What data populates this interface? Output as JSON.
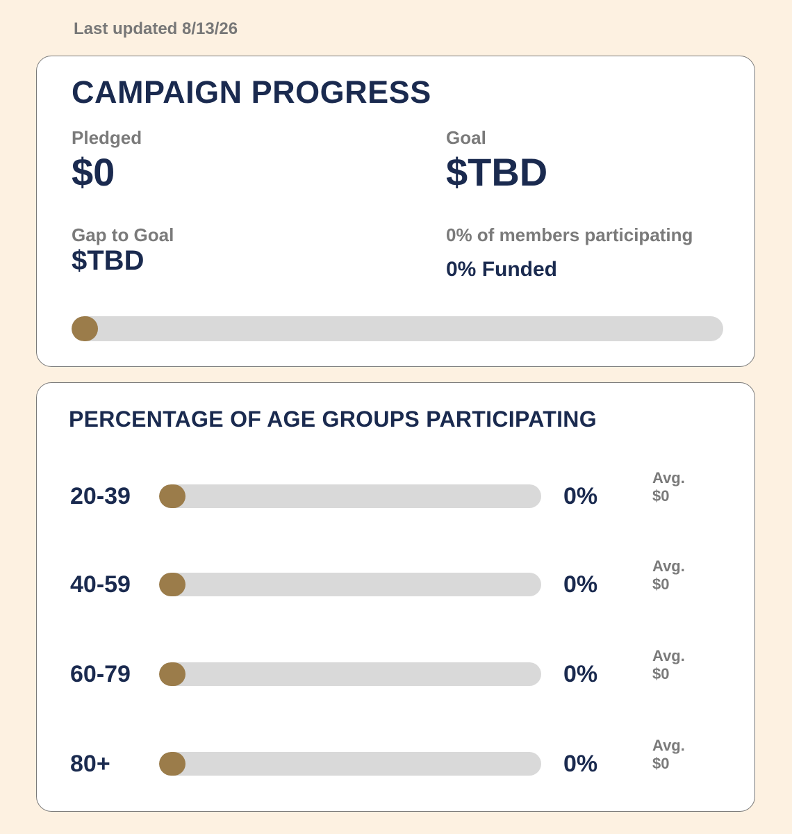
{
  "last_updated": "Last updated 8/13/26",
  "progress": {
    "title": "CAMPAIGN PROGRESS",
    "pledged_label": "Pledged",
    "pledged_value": "$0",
    "goal_label": "Goal",
    "goal_value": "$TBD",
    "gap_label": "Gap to Goal",
    "gap_value": "$TBD",
    "participation": "0% of members participating",
    "funded": "0% Funded",
    "funded_fraction": 0
  },
  "age_groups": {
    "title": "PERCENTAGE OF AGE GROUPS PARTICIPATING",
    "avg_label": "Avg.",
    "rows": [
      {
        "label": "20-39",
        "percent_text": "0%",
        "percent": 0,
        "avg": "$0"
      },
      {
        "label": "40-59",
        "percent_text": "0%",
        "percent": 0,
        "avg": "$0"
      },
      {
        "label": "60-79",
        "percent_text": "0%",
        "percent": 0,
        "avg": "$0"
      },
      {
        "label": "80+",
        "percent_text": "0%",
        "percent": 0,
        "avg": "$0"
      }
    ]
  },
  "colors": {
    "background": "#fdf1e1",
    "navy": "#1a2a4f",
    "gold": "#9b7c4a",
    "track": "#d9d9d9",
    "gray_text": "#7a7a7a"
  }
}
